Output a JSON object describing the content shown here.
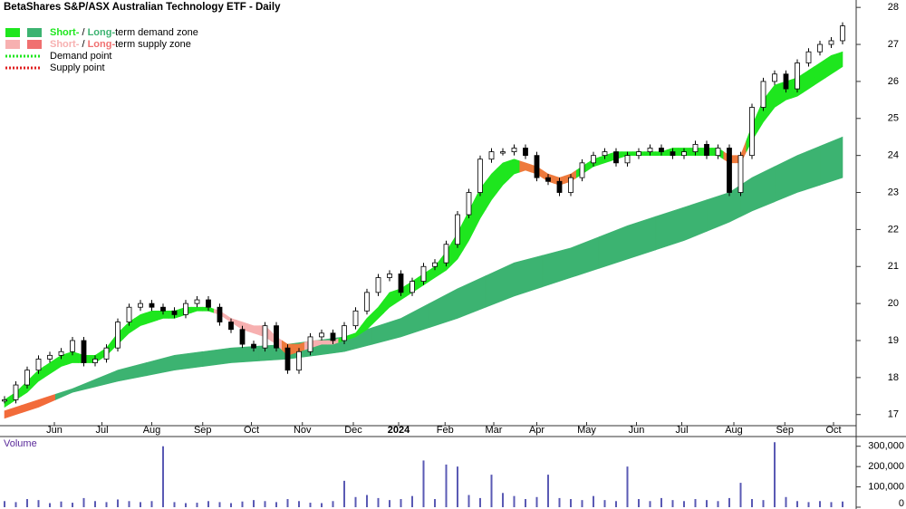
{
  "chart_data": {
    "type": "candle-zone",
    "title": "BetaShares S&P/ASX Australian Technology ETF - Daily",
    "legend": [
      {
        "parts": [
          "Short-",
          " / ",
          "Long-",
          "term demand zone"
        ],
        "colors": [
          "#1ee61e",
          "#3cb371"
        ]
      },
      {
        "parts": [
          "Short-",
          " / ",
          "Long-",
          "term supply zone"
        ],
        "colors": [
          "#f7b0b0",
          "#f07070"
        ]
      },
      {
        "parts": [
          "Demand point"
        ],
        "colors": [
          "#1ee61e"
        ]
      },
      {
        "parts": [
          "Supply point"
        ],
        "colors": [
          "#e02020"
        ]
      }
    ],
    "xlim": [
      -0.4,
      75.2
    ],
    "xticks": [
      {
        "value": 4.4,
        "label": "Jun"
      },
      {
        "value": 8.6,
        "label": "Jul"
      },
      {
        "value": 13,
        "label": "Aug"
      },
      {
        "value": 17.5,
        "label": "Sep"
      },
      {
        "value": 21.8,
        "label": "Oct"
      },
      {
        "value": 26.3,
        "label": "Nov"
      },
      {
        "value": 30.8,
        "label": "Dec"
      },
      {
        "value": 34.8,
        "label": "2024"
      },
      {
        "value": 38.9,
        "label": "Feb"
      },
      {
        "value": 43.2,
        "label": "Mar"
      },
      {
        "value": 47,
        "label": "Apr"
      },
      {
        "value": 51.4,
        "label": "May"
      },
      {
        "value": 55.8,
        "label": "Jun"
      },
      {
        "value": 59.8,
        "label": "Jul"
      },
      {
        "value": 64.4,
        "label": "Aug"
      },
      {
        "value": 68.9,
        "label": "Sep"
      },
      {
        "value": 73.2,
        "label": "Oct"
      }
    ],
    "ylim": [
      16.7,
      28.2
    ],
    "yticks": [
      17,
      18,
      19,
      20,
      21,
      22,
      23,
      24,
      25,
      26,
      27,
      28
    ],
    "close": [
      17.4,
      17.8,
      18.2,
      18.5,
      18.6,
      18.7,
      19.0,
      18.4,
      18.5,
      18.8,
      19.5,
      19.9,
      20.0,
      19.9,
      19.8,
      19.7,
      20.0,
      20.1,
      19.9,
      19.5,
      19.3,
      18.9,
      18.8,
      19.4,
      18.8,
      18.2,
      18.7,
      19.1,
      19.2,
      19.0,
      19.4,
      19.8,
      20.3,
      20.7,
      20.8,
      20.3,
      20.6,
      21.0,
      21.1,
      21.6,
      22.4,
      23.0,
      23.9,
      24.1,
      24.1,
      24.2,
      24.0,
      23.4,
      23.3,
      23.0,
      23.4,
      23.8,
      24.0,
      24.1,
      23.8,
      24.0,
      24.1,
      24.2,
      24.1,
      24.0,
      24.1,
      24.3,
      24.0,
      24.2,
      23.0,
      24.0,
      25.3,
      26.0,
      26.2,
      25.8,
      26.5,
      26.8,
      27.0,
      27.1,
      27.5
    ],
    "short_zone": {
      "lower": [
        17.2,
        17.4,
        17.6,
        17.9,
        18.1,
        18.3,
        18.4,
        18.4,
        18.4,
        18.6,
        18.9,
        19.2,
        19.4,
        19.5,
        19.6,
        19.6,
        19.7,
        19.8,
        19.8,
        19.7,
        19.5,
        19.3,
        19.2,
        19.1,
        18.9,
        18.6,
        18.7,
        18.8,
        18.9,
        18.9,
        19.0,
        19.1,
        19.3,
        19.6,
        19.9,
        20.1,
        20.3,
        20.5,
        20.7,
        20.9,
        21.2,
        21.7,
        22.3,
        22.8,
        23.2,
        23.5,
        23.6,
        23.5,
        23.3,
        23.2,
        23.3,
        23.5,
        23.7,
        23.8,
        23.9,
        24.0,
        24.0,
        24.0,
        24.0,
        24.0,
        24.0,
        24.0,
        24.0,
        24.0,
        23.8,
        23.8,
        24.4,
        24.9,
        25.3,
        25.5,
        25.6,
        25.8,
        26.0,
        26.2,
        26.4
      ],
      "upper": [
        17.4,
        17.6,
        17.9,
        18.2,
        18.4,
        18.6,
        18.7,
        18.6,
        18.6,
        18.8,
        19.2,
        19.5,
        19.7,
        19.8,
        19.8,
        19.8,
        19.9,
        19.9,
        19.9,
        19.8,
        19.6,
        19.5,
        19.4,
        19.4,
        19.1,
        18.9,
        18.9,
        19.0,
        19.0,
        19.0,
        19.1,
        19.2,
        19.6,
        19.9,
        20.3,
        20.4,
        20.6,
        20.8,
        21.0,
        21.4,
        21.9,
        22.5,
        23.1,
        23.5,
        23.8,
        23.9,
        23.8,
        23.7,
        23.5,
        23.4,
        23.5,
        23.7,
        23.9,
        24.0,
        24.1,
        24.1,
        24.1,
        24.1,
        24.1,
        24.2,
        24.2,
        24.2,
        24.2,
        24.2,
        24.0,
        24.0,
        24.8,
        25.5,
        25.9,
        26.0,
        26.1,
        26.3,
        26.5,
        26.7,
        26.8
      ],
      "colors": [
        "#1ee61e",
        "#1ee61e",
        "#1ee61e",
        "#1ee61e",
        "#1ee61e",
        "#1ee61e",
        "#1ee61e",
        "#1ee61e",
        "#1ee61e",
        "#1ee61e",
        "#1ee61e",
        "#1ee61e",
        "#1ee61e",
        "#1ee61e",
        "#1ee61e",
        "#1ee61e",
        "#1ee61e",
        "#1ee61e",
        "#1ee61e",
        "#f7b0b0",
        "#f7b0b0",
        "#f7b0b0",
        "#f7b0b0",
        "#f7b0b0",
        "#f7b0b0",
        "#ee7a3c",
        "#ee7a3c",
        "#f7b0b0",
        "#f7b0b0",
        "#f7b0b0",
        "#1ee61e",
        "#1ee61e",
        "#1ee61e",
        "#1ee61e",
        "#1ee61e",
        "#1ee61e",
        "#1ee61e",
        "#1ee61e",
        "#1ee61e",
        "#1ee61e",
        "#1ee61e",
        "#1ee61e",
        "#1ee61e",
        "#1ee61e",
        "#1ee61e",
        "#1ee61e",
        "#ee7a3c",
        "#ee7a3c",
        "#ee7a3c",
        "#ee7a3c",
        "#ee7a3c",
        "#1ee61e",
        "#1ee61e",
        "#1ee61e",
        "#1ee61e",
        "#1ee61e",
        "#1ee61e",
        "#1ee61e",
        "#1ee61e",
        "#1ee61e",
        "#1ee61e",
        "#1ee61e",
        "#1ee61e",
        "#1ee61e",
        "#ee7a3c",
        "#ee7a3c",
        "#1ee61e",
        "#1ee61e",
        "#1ee61e",
        "#1ee61e",
        "#1ee61e",
        "#1ee61e",
        "#1ee61e",
        "#1ee61e",
        "#1ee61e"
      ]
    },
    "long_zone": {
      "x": [
        0,
        3,
        6,
        10,
        15,
        20,
        25,
        30,
        35,
        40,
        45,
        50,
        55,
        60,
        64,
        66,
        70,
        74
      ],
      "lower": [
        16.9,
        17.2,
        17.6,
        17.9,
        18.2,
        18.4,
        18.5,
        18.7,
        19.1,
        19.6,
        20.2,
        20.7,
        21.2,
        21.7,
        22.2,
        22.5,
        23.0,
        23.4
      ],
      "upper": [
        17.1,
        17.4,
        17.7,
        18.2,
        18.6,
        18.8,
        18.9,
        19.1,
        19.6,
        20.4,
        21.1,
        21.5,
        22.1,
        22.6,
        23.0,
        23.4,
        24.0,
        24.5
      ],
      "colors": [
        "#f26b3a",
        "#f26b3a",
        "#3cb371",
        "#3cb371",
        "#3cb371",
        "#3cb371",
        "#3cb371",
        "#3cb371",
        "#3cb371",
        "#3cb371",
        "#3cb371",
        "#3cb371",
        "#3cb371",
        "#3cb371",
        "#3cb371",
        "#3cb371",
        "#3cb371",
        "#3cb371"
      ]
    },
    "volume": {
      "label": "Volume",
      "color": "#5a5ab4",
      "values": [
        30000,
        25000,
        40000,
        35000,
        20000,
        28000,
        22000,
        45000,
        30000,
        25000,
        38000,
        30000,
        25000,
        30000,
        300000,
        25000,
        20000,
        22000,
        30000,
        25000,
        20000,
        28000,
        35000,
        30000,
        25000,
        40000,
        30000,
        22000,
        20000,
        30000,
        130000,
        50000,
        60000,
        45000,
        35000,
        40000,
        55000,
        230000,
        40000,
        210000,
        200000,
        60000,
        45000,
        160000,
        70000,
        55000,
        40000,
        50000,
        160000,
        45000,
        40000,
        35000,
        55000,
        35000,
        30000,
        200000,
        40000,
        30000,
        45000,
        35000,
        30000,
        40000,
        35000,
        30000,
        45000,
        120000,
        40000,
        35000,
        320000,
        50000,
        30000,
        25000,
        30000,
        25000,
        28000
      ],
      "ylim": [
        0,
        330000
      ],
      "yticks": [
        0,
        {
          "value": 100000,
          "label": "100,000"
        },
        {
          "value": 200000,
          "label": "200,000"
        },
        {
          "value": 300000,
          "label": "300,000"
        }
      ]
    }
  }
}
